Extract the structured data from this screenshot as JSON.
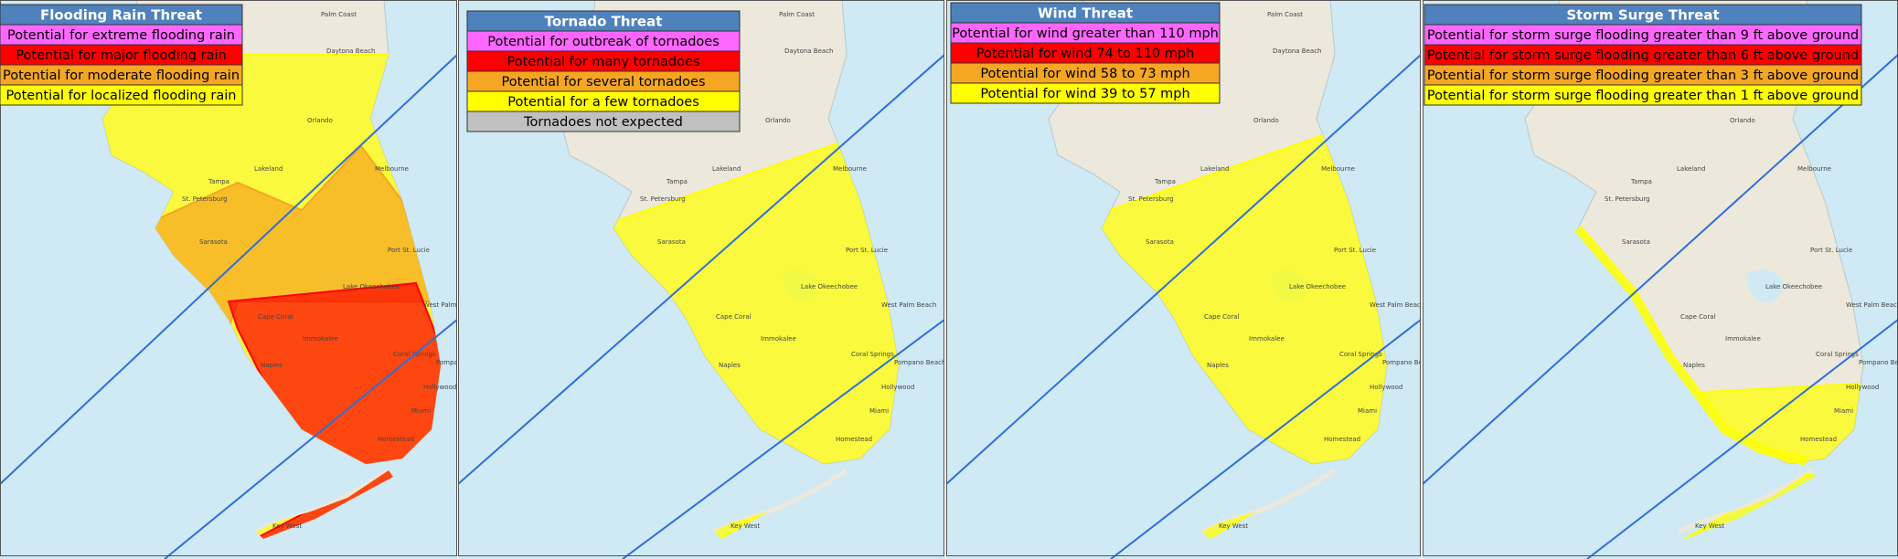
{
  "panels": [
    {
      "title": "Flooding Rain Threat",
      "items": [
        {
          "label": "Potential for extreme flooding rain",
          "color": "#ff66ff"
        },
        {
          "label": "Potential for major flooding rain",
          "color": "#ff0000"
        },
        {
          "label": "Potential for moderate flooding rain",
          "color": "#f5a623"
        },
        {
          "label": "Potential for localized flooding rain",
          "color": "#ffff00"
        }
      ]
    },
    {
      "title": "Tornado Threat",
      "items": [
        {
          "label": "Potential for outbreak of tornadoes",
          "color": "#ff66ff"
        },
        {
          "label": "Potential for many  tornadoes",
          "color": "#ff0000"
        },
        {
          "label": "Potential for several tornadoes",
          "color": "#f5a623"
        },
        {
          "label": "Potential for a few tornadoes",
          "color": "#ffff00"
        },
        {
          "label": "Tornadoes not expected",
          "color": "#c0c0c0"
        }
      ]
    },
    {
      "title": "Wind Threat",
      "items": [
        {
          "label": "Potential for wind greater than 110 mph",
          "color": "#ff66ff"
        },
        {
          "label": "Potential for wind 74 to 110 mph",
          "color": "#ff0000"
        },
        {
          "label": "Potential for wind 58 to 73 mph",
          "color": "#f5a623"
        },
        {
          "label": "Potential for wind 39 to 57 mph",
          "color": "#ffff00"
        }
      ]
    },
    {
      "title": "Storm Surge Threat",
      "items": [
        {
          "label": "Potential for storm surge flooding greater than 9 ft above ground",
          "color": "#ff66ff"
        },
        {
          "label": "Potential for storm surge flooding greater than 6 ft above ground",
          "color": "#ff0000"
        },
        {
          "label": "Potential for storm surge flooding greater than 3 ft above ground",
          "color": "#f5a623"
        },
        {
          "label": "Potential for storm surge flooding greater than 1 ft above ground",
          "color": "#ffff00"
        }
      ]
    }
  ],
  "map_labels": [
    "Palm Coast",
    "Daytona Beach",
    "Orlando",
    "Melbourne",
    "Tampa",
    "Lakeland",
    "St. Petersburg",
    "Sarasota",
    "Port St. Lucie",
    "Lake Okeechobee",
    "West Palm Beach",
    "Cape Coral",
    "Immokalee",
    "Naples",
    "Coral Springs",
    "Pompano Beach",
    "Hollywood",
    "Miami",
    "Homestead",
    "Key West"
  ]
}
